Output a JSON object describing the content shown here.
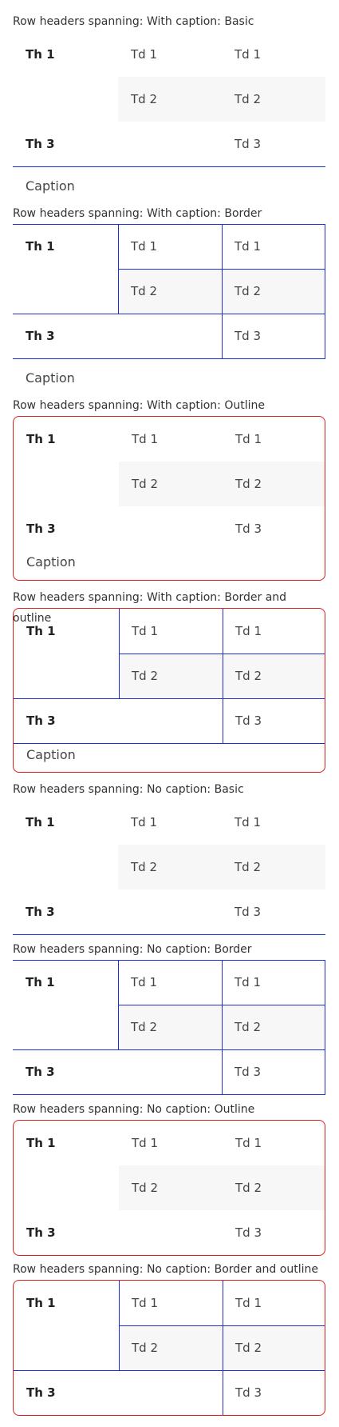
{
  "sections": [
    {
      "title": "Row headers spanning: With caption: Basic",
      "caption": "Caption"
    },
    {
      "title": "Row headers spanning: With caption: Border",
      "caption": "Caption"
    },
    {
      "title": "Row headers spanning: With caption: Outline",
      "caption": "Caption"
    },
    {
      "title": "Row headers spanning: With caption: Border and outline",
      "caption": "Caption"
    },
    {
      "title": "Row headers spanning: No caption: Basic"
    },
    {
      "title": "Row headers spanning: No caption: Border"
    },
    {
      "title": "Row headers spanning: No caption: Outline"
    },
    {
      "title": "Row headers spanning: No caption: Border and outline"
    }
  ],
  "cells": {
    "th1": "Th 1",
    "th3": "Th 3",
    "td1": "Td 1",
    "td2": "Td 2",
    "td3": "Td 3"
  },
  "colors": {
    "border": "#1f2fd6",
    "outline": "#e01e1e",
    "row_shade": "#f7f7f7"
  }
}
